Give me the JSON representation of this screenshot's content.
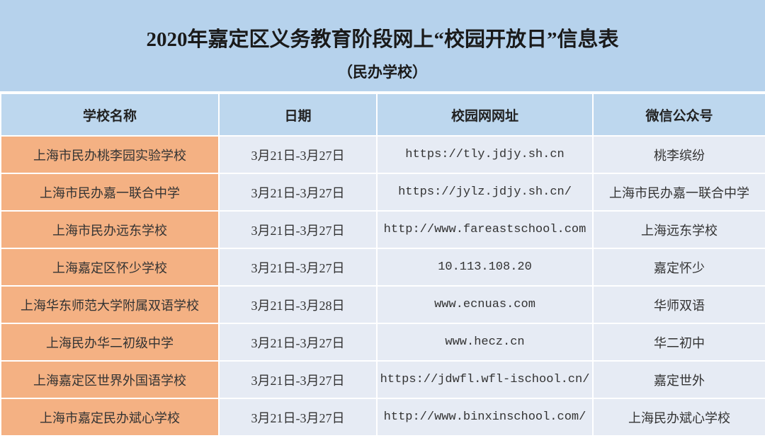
{
  "title": "2020年嘉定区义务教育阶段网上“校园开放日”信息表",
  "subtitle": "（民办学校）",
  "colors": {
    "title_bg": "#b6d2ec",
    "header_bg": "#bdd7ee",
    "name_bg": "#f4b183",
    "cell_bg": "#e6ebf4"
  },
  "headers": [
    "学校名称",
    "日期",
    "校园网网址",
    "微信公众号"
  ],
  "rows": [
    {
      "school": "上海市民办桃李园实验学校",
      "date": "3月21日-3月27日",
      "url": "https://tly.jdjy.sh.cn",
      "wechat": "桃李缤纷"
    },
    {
      "school": "上海市民办嘉一联合中学",
      "date": "3月21日-3月27日",
      "url": "https://jylz.jdjy.sh.cn/",
      "wechat": "上海市民办嘉一联合中学"
    },
    {
      "school": "上海市民办远东学校",
      "date": "3月21日-3月27日",
      "url": "http://www.fareastschool.com",
      "wechat": "上海远东学校"
    },
    {
      "school": "上海嘉定区怀少学校",
      "date": "3月21日-3月27日",
      "url": "10.113.108.20",
      "wechat": "嘉定怀少"
    },
    {
      "school": "上海华东师范大学附属双语学校",
      "date": "3月21日-3月28日",
      "url": "www.ecnuas.com",
      "wechat": "华师双语"
    },
    {
      "school": "上海民办华二初级中学",
      "date": "3月21日-3月27日",
      "url": "www.hecz.cn",
      "wechat": "华二初中"
    },
    {
      "school": "上海嘉定区世界外国语学校",
      "date": "3月21日-3月27日",
      "url": "https://jdwfl.wfl-ischool.cn/",
      "wechat": "嘉定世外"
    },
    {
      "school": "上海市嘉定民办斌心学校",
      "date": "3月21日-3月27日",
      "url": "http://www.binxinschool.com/",
      "wechat": "上海民办斌心学校"
    }
  ]
}
